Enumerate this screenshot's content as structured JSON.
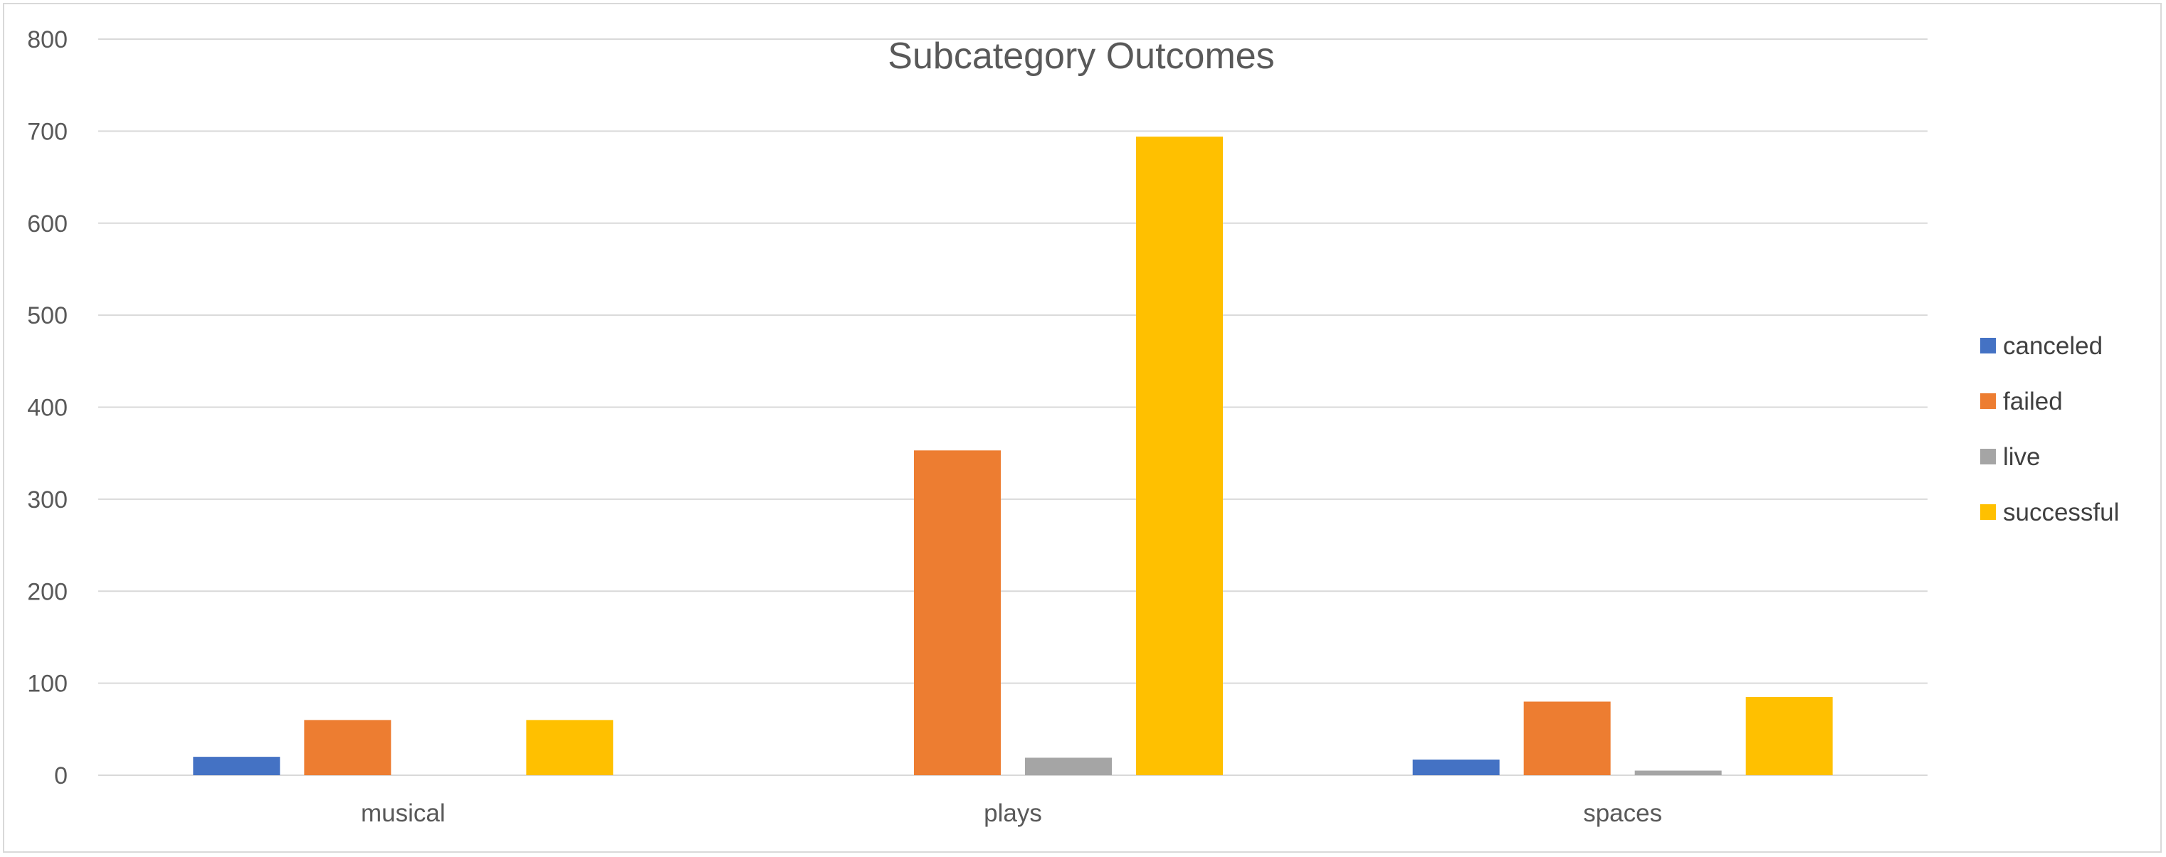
{
  "chart_data": {
    "type": "bar",
    "title": "Subcategory Outcomes",
    "xlabel": "",
    "ylabel": "",
    "categories": [
      "musical",
      "plays",
      "spaces"
    ],
    "series": [
      {
        "name": "canceled",
        "color": "#4472C4",
        "values": [
          20,
          0,
          17
        ]
      },
      {
        "name": "failed",
        "color": "#ED7D31",
        "values": [
          60,
          353,
          80
        ]
      },
      {
        "name": "live",
        "color": "#A5A5A5",
        "values": [
          0,
          19,
          5
        ]
      },
      {
        "name": "successful",
        "color": "#FFC000",
        "values": [
          60,
          694,
          85
        ]
      }
    ],
    "ylim": [
      0,
      800
    ],
    "yticks": [
      "0",
      "100",
      "200",
      "300",
      "400",
      "500",
      "600",
      "700",
      "800"
    ],
    "grid": true,
    "legend_position": "right"
  }
}
